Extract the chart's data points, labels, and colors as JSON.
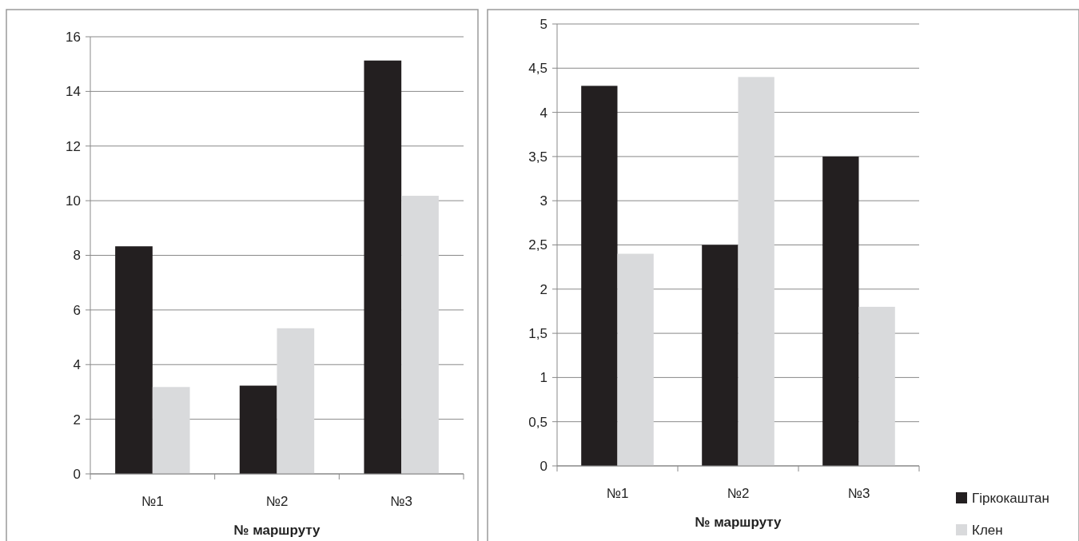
{
  "chart_data": [
    {
      "type": "bar",
      "xlabel": "№ маршруту",
      "categories": [
        "№1",
        "№2",
        "№3"
      ],
      "series": [
        {
          "color": "#231f20",
          "values": [
            8.33,
            3.23,
            15.13
          ]
        },
        {
          "color": "#d9dadc",
          "values": [
            3.18,
            5.33,
            10.18
          ]
        }
      ],
      "ylim": [
        0,
        16
      ],
      "yticks": [
        0,
        2,
        4,
        6,
        8,
        10,
        12,
        14,
        16
      ],
      "grid": "y",
      "legend": false
    },
    {
      "type": "bar",
      "xlabel": "№ маршруту",
      "categories": [
        "№1",
        "№2",
        "№3"
      ],
      "series": [
        {
          "name": "Гіркокаштан",
          "color": "#231f20",
          "values": [
            4.3,
            2.5,
            3.5
          ]
        },
        {
          "name": "Клен",
          "color": "#d9dadc",
          "values": [
            2.4,
            4.4,
            1.8
          ]
        }
      ],
      "ylim": [
        0,
        5
      ],
      "yticks": [
        0,
        {
          "value": 0.5,
          "label": "0,5"
        },
        1,
        {
          "value": 1.5,
          "label": "1,5"
        },
        2,
        {
          "value": 2.5,
          "label": "2,5"
        },
        3,
        {
          "value": 3.5,
          "label": "3,5"
        },
        4,
        {
          "value": 4.5,
          "label": "4,5"
        },
        5
      ],
      "grid": "y",
      "legend": "bottom right"
    }
  ]
}
